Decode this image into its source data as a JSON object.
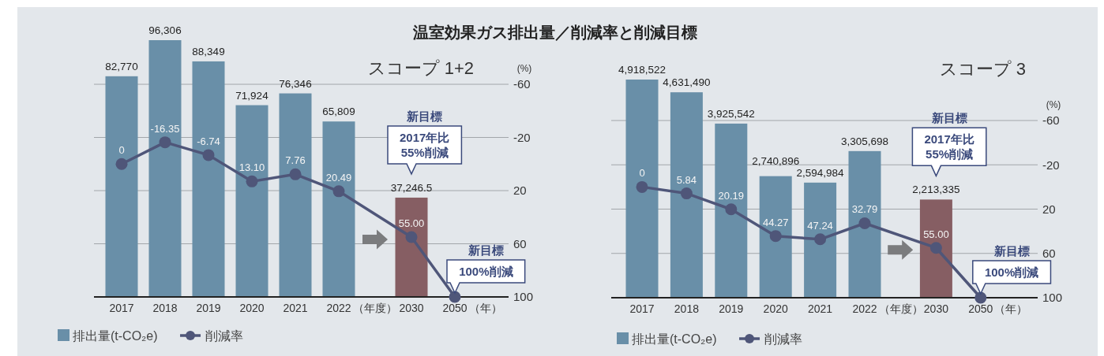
{
  "chart_data": [
    {
      "type": "bar",
      "title": "温室効果ガス排出量／削減率と削減目標",
      "subtitle": "スコープ 1+2",
      "y2label": "(%)",
      "categories": [
        "2017",
        "2018",
        "2019",
        "2020",
        "2021",
        "2022",
        "2030",
        "2050"
      ],
      "series": [
        {
          "name": "排出量(t-CO₂e)",
          "color": "#698fa8",
          "colors": [
            "#698fa8",
            "#698fa8",
            "#698fa8",
            "#698fa8",
            "#698fa8",
            "#698fa8",
            "#865e63",
            null
          ],
          "values": [
            82770,
            96306,
            88349,
            71924,
            76346,
            65809,
            37246.5,
            null
          ],
          "value_labels": [
            "82,770",
            "96,306",
            "88,349",
            "71,924",
            "76,346",
            "65,809",
            "37,246.5",
            null
          ]
        },
        {
          "name": "削減率",
          "type": "line",
          "axis": "y2",
          "color": "#4f5679",
          "marker": "circle",
          "values": [
            0,
            -16.35,
            -6.74,
            13.1,
            7.76,
            20.49,
            55,
            100
          ],
          "value_labels": [
            "0",
            "-16.35",
            "-6.74",
            "13.10",
            "7.76",
            "20.49",
            "55.00",
            null
          ]
        }
      ],
      "y2lim": [
        100,
        -60
      ],
      "y2ticks": [
        -60,
        -20,
        20,
        60,
        100
      ],
      "grid": "y",
      "legend": "bottom left",
      "annotations": [
        "（年度）",
        "（年）",
        "新目標\n2017年比\n55%削減",
        {
          "text": "新目標\n100%削減",
          "x": "2050",
          "y": 100
        }
      ]
    },
    {
      "type": "bar",
      "subtitle": "スコープ 3",
      "y2label": "(%)",
      "categories": [
        "2017",
        "2018",
        "2019",
        "2020",
        "2021",
        "2022",
        "2030",
        "2050"
      ],
      "series": [
        {
          "name": "排出量(t-CO₂e)",
          "color": "#698fa8",
          "colors": [
            "#698fa8",
            "#698fa8",
            "#698fa8",
            "#698fa8",
            "#698fa8",
            "#698fa8",
            "#865e63",
            null
          ],
          "values": [
            4918522,
            4631490,
            3925542,
            2740896,
            2594984,
            3305698,
            2213335,
            null
          ],
          "value_labels": [
            "4,918,522",
            "4,631,490",
            "3,925,542",
            "2,740,896",
            "2,594,984",
            "3,305,698",
            "2,213,335",
            null
          ]
        },
        {
          "name": "削減率",
          "type": "line",
          "axis": "y2",
          "color": "#4f5679",
          "marker": "circle",
          "values": [
            0,
            5.84,
            20.19,
            44.27,
            47.24,
            32.79,
            55,
            100
          ],
          "value_labels": [
            "0",
            "5.84",
            "20.19",
            "44.27",
            "47.24",
            "32.79",
            "55.00",
            null
          ]
        }
      ],
      "y2lim": [
        100,
        -60
      ],
      "y2ticks": [
        -60,
        -20,
        20,
        60,
        100
      ],
      "grid": "y",
      "legend": "bottom left",
      "annotations": [
        "（年度）",
        "（年）",
        "新目標\n2017年比\n55%削減",
        {
          "text": "新目標\n100%削減",
          "x": "2050",
          "y": 100
        }
      ]
    }
  ]
}
